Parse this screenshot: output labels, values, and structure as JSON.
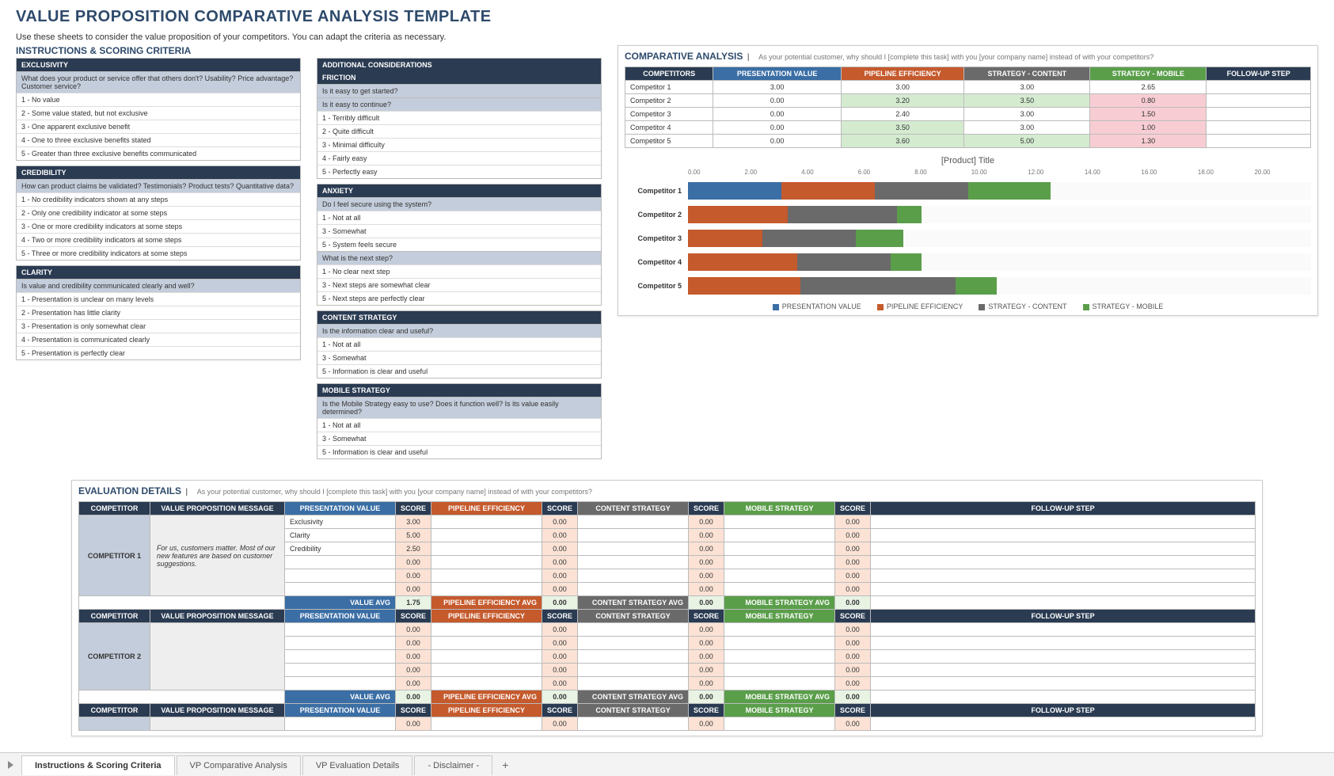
{
  "title": "VALUE PROPOSITION COMPARATIVE ANALYSIS TEMPLATE",
  "intro": "Use these sheets to consider the value proposition of your competitors. You can adapt the criteria as necessary.",
  "instr_heading": "INSTRUCTIONS & SCORING CRITERIA",
  "criteria_left": [
    {
      "h": "EXCLUSIVITY",
      "q": "What does your product or service offer that others don't? Usability? Price advantage? Customer service?",
      "r": [
        "1 - No value",
        "2 - Some value stated, but not exclusive",
        "3 - One apparent exclusive benefit",
        "4 - One to three exclusive benefits stated",
        "5 - Greater than three exclusive benefits communicated"
      ]
    },
    {
      "h": "CREDIBILITY",
      "q": "How can product claims be validated? Testimonials? Product tests? Quantitative data?",
      "r": [
        "1 - No credibility indicators shown at any steps",
        "2 - Only one credibility indicator at some steps",
        "3 - One or more credibility indicators at some steps",
        "4 - Two or more credibility indicators at some steps",
        "5 - Three or more credibility indicators at some steps"
      ]
    },
    {
      "h": "CLARITY",
      "q": "Is value and credibility communicated clearly and well?",
      "r": [
        "1 - Presentation is unclear on many levels",
        "2 - Presentation has little clarity",
        "3 - Presentation is only somewhat clear",
        "4 - Presentation is communicated clearly",
        "5 - Presentation is perfectly clear"
      ]
    }
  ],
  "criteria_right": [
    {
      "h": "ADDITIONAL CONSIDERATIONS",
      "sub": [
        {
          "h": "FRICTION",
          "q": [
            "Is it easy to get started?",
            "Is it easy to continue?"
          ],
          "r": [
            "1 - Terribly difficult",
            "2 - Quite difficult",
            "3 - Minimal difficulty",
            "4 - Fairly easy",
            "5 - Perfectly easy"
          ]
        },
        {
          "h": "ANXIETY",
          "q": [
            "Do I feel secure using the system?"
          ],
          "r": [
            "1 - Not at all",
            "3 - Somewhat",
            "5 - System feels secure"
          ],
          "q2": "What is the next step?",
          "r2": [
            "1 - No clear next step",
            "3 - Next steps are somewhat clear",
            "5 - Next steps are perfectly clear"
          ]
        },
        {
          "h": "CONTENT STRATEGY",
          "q": [
            "Is the information clear and useful?"
          ],
          "r": [
            "1 - Not at all",
            "3 - Somewhat",
            "5 - Information is clear and useful"
          ]
        },
        {
          "h": "MOBILE STRATEGY",
          "q": [
            "Is the Mobile Strategy easy to use?  Does it function well?  Is its value easily determined?"
          ],
          "r": [
            "1 - Not at all",
            "3 - Somewhat",
            "5 - Information is clear and useful"
          ]
        }
      ]
    }
  ],
  "comp_panel": {
    "title": "COMPARATIVE ANALYSIS",
    "sub": "As your potential customer, why should I [complete this task] with you [your company name] instead of with your competitors?",
    "headers": [
      "COMPETITORS",
      "PRESENTATION VALUE",
      "PIPELINE EFFICIENCY",
      "STRATEGY - CONTENT",
      "STRATEGY - MOBILE",
      "FOLLOW-UP STEP"
    ],
    "header_colors": [
      "#2a3b52",
      "#3a6ea5",
      "#c55a2d",
      "#6a6a6a",
      "#5a9e4a",
      "#2a3b52"
    ],
    "rows": [
      {
        "c": "Competitor 1",
        "v": [
          "3.00",
          "3.00",
          "3.00",
          "2.65",
          ""
        ],
        "hl": [
          "",
          "",
          "",
          "",
          ""
        ]
      },
      {
        "c": "Competitor 2",
        "v": [
          "0.00",
          "3.20",
          "3.50",
          "0.80",
          ""
        ],
        "hl": [
          "",
          "g",
          "g",
          "p",
          ""
        ]
      },
      {
        "c": "Competitor 3",
        "v": [
          "0.00",
          "2.40",
          "3.00",
          "1.50",
          ""
        ],
        "hl": [
          "",
          "",
          "",
          "p",
          ""
        ]
      },
      {
        "c": "Competitor 4",
        "v": [
          "0.00",
          "3.50",
          "3.00",
          "1.00",
          ""
        ],
        "hl": [
          "",
          "g",
          "",
          "p",
          ""
        ]
      },
      {
        "c": "Competitor 5",
        "v": [
          "0.00",
          "3.60",
          "5.00",
          "1.30",
          ""
        ],
        "hl": [
          "",
          "g",
          "g",
          "p",
          ""
        ]
      }
    ]
  },
  "chart": {
    "title": "[Product] Title",
    "max": 20,
    "ticks": [
      "0.00",
      "2.00",
      "4.00",
      "6.00",
      "8.00",
      "10.00",
      "12.00",
      "14.00",
      "16.00",
      "18.00",
      "20.00"
    ],
    "series": [
      "PRESENTATION VALUE",
      "PIPELINE EFFICIENCY",
      "STRATEGY - CONTENT",
      "STRATEGY - MOBILE"
    ],
    "colors": [
      "#3a6ea5",
      "#c55a2d",
      "#6a6a6a",
      "#5a9e4a"
    ],
    "data": [
      {
        "l": "Competitor 1",
        "v": [
          3.0,
          3.0,
          3.0,
          2.65
        ]
      },
      {
        "l": "Competitor 2",
        "v": [
          0.0,
          3.2,
          3.5,
          0.8
        ]
      },
      {
        "l": "Competitor 3",
        "v": [
          0.0,
          2.4,
          3.0,
          1.5
        ]
      },
      {
        "l": "Competitor 4",
        "v": [
          0.0,
          3.5,
          3.0,
          1.0
        ]
      },
      {
        "l": "Competitor 5",
        "v": [
          0.0,
          3.6,
          5.0,
          1.3
        ]
      }
    ]
  },
  "eval": {
    "title": "EVALUATION DETAILS",
    "sub": "As your potential customer, why should I [complete this task] with you [your company name] instead of with your competitors?",
    "hdr": [
      "COMPETITOR",
      "VALUE PROPOSITION MESSAGE",
      "PRESENTATION VALUE",
      "SCORE",
      "PIPELINE EFFICIENCY",
      "SCORE",
      "CONTENT STRATEGY",
      "SCORE",
      "MOBILE STRATEGY",
      "SCORE",
      "FOLLOW-UP STEP"
    ],
    "hdr_cls": [
      "th-navy",
      "th-navy",
      "th-blue",
      "th-navy",
      "th-orange",
      "th-navy",
      "th-gray",
      "th-navy",
      "th-green",
      "th-navy",
      "th-navy"
    ],
    "c1": {
      "name": "COMPETITOR 1",
      "msg": "For us, customers matter. Most of our new features are based on customer suggestions.",
      "rows": [
        [
          "Exclusivity",
          "3.00",
          "",
          "0.00",
          "",
          "0.00",
          "",
          "0.00",
          ""
        ],
        [
          "Clarity",
          "5.00",
          "",
          "0.00",
          "",
          "0.00",
          "",
          "0.00",
          ""
        ],
        [
          "Credibility",
          "2.50",
          "",
          "0.00",
          "",
          "0.00",
          "",
          "0.00",
          ""
        ],
        [
          "",
          "0.00",
          "",
          "0.00",
          "",
          "0.00",
          "",
          "0.00",
          ""
        ],
        [
          "",
          "0.00",
          "",
          "0.00",
          "",
          "0.00",
          "",
          "0.00",
          ""
        ],
        [
          "",
          "0.00",
          "",
          "0.00",
          "",
          "0.00",
          "",
          "0.00",
          ""
        ]
      ],
      "avg": [
        "VALUE AVG",
        "1.75",
        "PIPELINE EFFICIENCY AVG",
        "0.00",
        "CONTENT STRATEGY AVG",
        "0.00",
        "MOBILE STRATEGY AVG",
        "0.00",
        ""
      ]
    },
    "c2": {
      "name": "COMPETITOR 2",
      "msg": "",
      "rows": [
        [
          "",
          "0.00",
          "",
          "0.00",
          "",
          "0.00",
          "",
          "0.00",
          ""
        ],
        [
          "",
          "0.00",
          "",
          "0.00",
          "",
          "0.00",
          "",
          "0.00",
          ""
        ],
        [
          "",
          "0.00",
          "",
          "0.00",
          "",
          "0.00",
          "",
          "0.00",
          ""
        ],
        [
          "",
          "0.00",
          "",
          "0.00",
          "",
          "0.00",
          "",
          "0.00",
          ""
        ],
        [
          "",
          "0.00",
          "",
          "0.00",
          "",
          "0.00",
          "",
          "0.00",
          ""
        ]
      ],
      "avg": [
        "VALUE AVG",
        "0.00",
        "PIPELINE EFFICIENCY AVG",
        "0.00",
        "CONTENT STRATEGY AVG",
        "0.00",
        "MOBILE STRATEGY AVG",
        "0.00",
        ""
      ]
    },
    "c3_row": [
      "",
      "0.00",
      "",
      "0.00",
      "",
      "0.00",
      "",
      "0.00",
      ""
    ]
  },
  "tabs": [
    "Instructions & Scoring Criteria",
    "VP Comparative Analysis",
    "VP Evaluation Details",
    "- Disclaimer -"
  ]
}
